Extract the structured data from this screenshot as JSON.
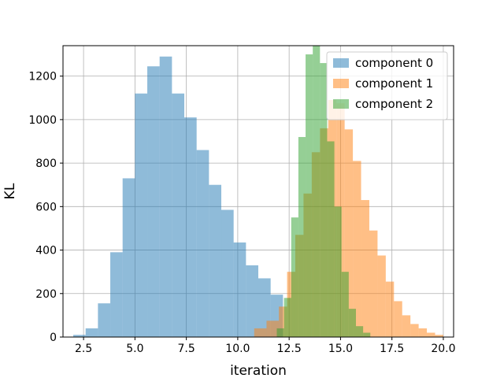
{
  "chart_data": {
    "type": "bar",
    "subtype": "histogram",
    "title": "",
    "xlabel": "iteration",
    "ylabel": "KL",
    "xlim": [
      1.5,
      20.5
    ],
    "ylim": [
      0,
      1340
    ],
    "xticks": [
      2.5,
      5.0,
      7.5,
      10.0,
      12.5,
      15.0,
      17.5,
      20.0
    ],
    "xtick_labels": [
      "2.5",
      "5.0",
      "7.5",
      "10.0",
      "12.5",
      "15.0",
      "17.5",
      "20.0"
    ],
    "yticks": [
      0,
      200,
      400,
      600,
      800,
      1000,
      1200
    ],
    "ytick_labels": [
      "0",
      "200",
      "400",
      "600",
      "800",
      "1000",
      "1200"
    ],
    "grid": true,
    "legend_position": "top-right",
    "opacity": 0.5,
    "series": [
      {
        "name": "component 0",
        "color": "#1f77b4",
        "bins": [
          {
            "x0": 2.0,
            "x1": 2.6,
            "y": 10
          },
          {
            "x0": 2.6,
            "x1": 3.2,
            "y": 40
          },
          {
            "x0": 3.2,
            "x1": 3.8,
            "y": 155
          },
          {
            "x0": 3.8,
            "x1": 4.4,
            "y": 390
          },
          {
            "x0": 4.4,
            "x1": 5.0,
            "y": 730
          },
          {
            "x0": 5.0,
            "x1": 5.6,
            "y": 1120
          },
          {
            "x0": 5.6,
            "x1": 6.2,
            "y": 1245
          },
          {
            "x0": 6.2,
            "x1": 6.8,
            "y": 1290
          },
          {
            "x0": 6.8,
            "x1": 7.4,
            "y": 1120
          },
          {
            "x0": 7.4,
            "x1": 8.0,
            "y": 1010
          },
          {
            "x0": 8.0,
            "x1": 8.6,
            "y": 860
          },
          {
            "x0": 8.6,
            "x1": 9.2,
            "y": 700
          },
          {
            "x0": 9.2,
            "x1": 9.8,
            "y": 585
          },
          {
            "x0": 9.8,
            "x1": 10.4,
            "y": 435
          },
          {
            "x0": 10.4,
            "x1": 11.0,
            "y": 330
          },
          {
            "x0": 11.0,
            "x1": 11.6,
            "y": 270
          },
          {
            "x0": 11.6,
            "x1": 12.2,
            "y": 195
          }
        ]
      },
      {
        "name": "component 1",
        "color": "#ff7f0e",
        "bins": [
          {
            "x0": 10.8,
            "x1": 11.4,
            "y": 40
          },
          {
            "x0": 11.4,
            "x1": 12.0,
            "y": 75
          },
          {
            "x0": 12.0,
            "x1": 12.4,
            "y": 140
          },
          {
            "x0": 12.4,
            "x1": 12.8,
            "y": 300
          },
          {
            "x0": 12.8,
            "x1": 13.2,
            "y": 470
          },
          {
            "x0": 13.2,
            "x1": 13.6,
            "y": 660
          },
          {
            "x0": 13.6,
            "x1": 14.0,
            "y": 850
          },
          {
            "x0": 14.0,
            "x1": 14.4,
            "y": 960
          },
          {
            "x0": 14.4,
            "x1": 14.8,
            "y": 1090
          },
          {
            "x0": 14.8,
            "x1": 15.2,
            "y": 1075
          },
          {
            "x0": 15.2,
            "x1": 15.6,
            "y": 955
          },
          {
            "x0": 15.6,
            "x1": 16.0,
            "y": 810
          },
          {
            "x0": 16.0,
            "x1": 16.4,
            "y": 630
          },
          {
            "x0": 16.4,
            "x1": 16.8,
            "y": 490
          },
          {
            "x0": 16.8,
            "x1": 17.2,
            "y": 375
          },
          {
            "x0": 17.2,
            "x1": 17.6,
            "y": 255
          },
          {
            "x0": 17.6,
            "x1": 18.0,
            "y": 165
          },
          {
            "x0": 18.0,
            "x1": 18.4,
            "y": 100
          },
          {
            "x0": 18.4,
            "x1": 18.8,
            "y": 60
          },
          {
            "x0": 18.8,
            "x1": 19.2,
            "y": 40
          },
          {
            "x0": 19.2,
            "x1": 19.6,
            "y": 20
          },
          {
            "x0": 19.6,
            "x1": 20.0,
            "y": 10
          }
        ]
      },
      {
        "name": "component 2",
        "color": "#2ca02c",
        "bins": [
          {
            "x0": 11.9,
            "x1": 12.25,
            "y": 40
          },
          {
            "x0": 12.25,
            "x1": 12.6,
            "y": 180
          },
          {
            "x0": 12.6,
            "x1": 12.95,
            "y": 550
          },
          {
            "x0": 12.95,
            "x1": 13.3,
            "y": 920
          },
          {
            "x0": 13.3,
            "x1": 13.65,
            "y": 1300
          },
          {
            "x0": 13.65,
            "x1": 14.0,
            "y": 1380
          },
          {
            "x0": 14.0,
            "x1": 14.35,
            "y": 1260
          },
          {
            "x0": 14.35,
            "x1": 14.7,
            "y": 900
          },
          {
            "x0": 14.7,
            "x1": 15.05,
            "y": 600
          },
          {
            "x0": 15.05,
            "x1": 15.4,
            "y": 300
          },
          {
            "x0": 15.4,
            "x1": 15.75,
            "y": 130
          },
          {
            "x0": 15.75,
            "x1": 16.1,
            "y": 50
          },
          {
            "x0": 16.1,
            "x1": 16.45,
            "y": 20
          }
        ]
      }
    ]
  }
}
